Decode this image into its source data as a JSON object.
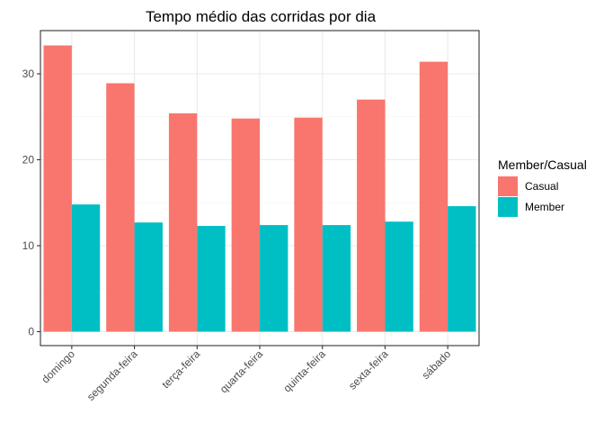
{
  "chart_data": {
    "type": "bar",
    "title": "Tempo médio das corridas por dia",
    "xlabel": "",
    "ylabel": "",
    "categories": [
      "domingo",
      "segunda-feira",
      "terça-feira",
      "quarta-feira",
      "quinta-feira",
      "sexta-feira",
      "sábado"
    ],
    "series": [
      {
        "name": "Casual",
        "color": "#F8766D",
        "values": [
          33.3,
          28.9,
          25.4,
          24.8,
          24.9,
          27.0,
          31.4
        ]
      },
      {
        "name": "Member",
        "color": "#00BFC4",
        "values": [
          14.8,
          12.7,
          12.3,
          12.4,
          12.4,
          12.8,
          14.6
        ]
      }
    ],
    "ylim": [
      0,
      35
    ],
    "yticks": [
      0,
      10,
      20,
      30
    ],
    "grid": true,
    "legend": {
      "title": "Member/Casual",
      "position": "right"
    }
  }
}
